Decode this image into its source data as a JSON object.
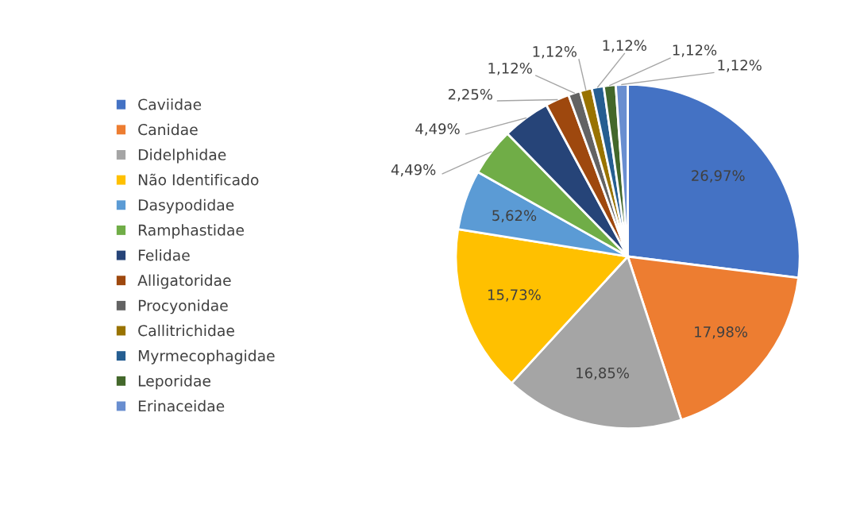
{
  "chart_data": {
    "type": "pie",
    "categories": [
      "Caviidae",
      "Canidae",
      "Didelphidae",
      "Não Identificado",
      "Dasypodidae",
      "Ramphastidae",
      "Felidae",
      "Alligatoridae",
      "Procyonidae",
      "Callitrichidae",
      "Myrmecophagidae",
      "Leporidae",
      "Erinaceidae"
    ],
    "values": [
      26.97,
      17.98,
      16.85,
      15.73,
      5.62,
      4.49,
      4.49,
      2.25,
      1.12,
      1.12,
      1.12,
      1.12,
      1.12
    ],
    "value_labels": [
      "26,97%",
      "17,98%",
      "16,85%",
      "15,73%",
      "5,62%",
      "4,49%",
      "4,49%",
      "2,25%",
      "1,12%",
      "1,12%",
      "1,12%",
      "1,12%",
      "1,12%"
    ],
    "colors": [
      "#4472c4",
      "#ed7d31",
      "#a5a5a5",
      "#ffc000",
      "#5b9bd5",
      "#70ad47",
      "#264478",
      "#9e480e",
      "#636363",
      "#997300",
      "#255e91",
      "#43682b",
      "#698ed0"
    ],
    "legend": "left"
  }
}
